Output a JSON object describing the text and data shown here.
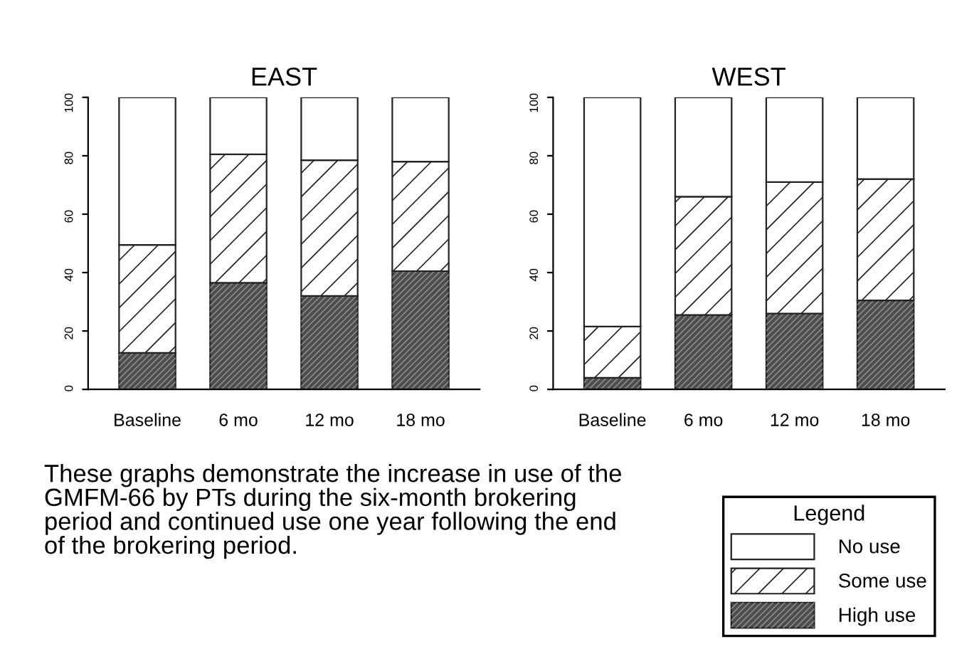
{
  "chart_data": [
    {
      "type": "bar",
      "title": "EAST",
      "stacked": true,
      "categories": [
        "Baseline",
        "6 mo",
        "12 mo",
        "18 mo"
      ],
      "series": [
        {
          "color": "#4d4d4d",
          "values": [
            12.5,
            36.5,
            32,
            40.5
          ]
        },
        {
          "color": "#ffffff",
          "values": [
            37,
            44,
            46.5,
            37.5
          ]
        },
        {
          "color": "#ffffff",
          "values": [
            50.5,
            19.5,
            21.5,
            22
          ]
        }
      ],
      "ylim": [
        0,
        100
      ],
      "yticks": [
        0,
        20,
        40,
        60,
        80,
        100
      ],
      "grid": false,
      "legend": false,
      "annotations": [
        "These graphs demonstrate the increase in use of the GMFM-66 by PTs during the six-month brokering period and continued use one year following the end of the brokering period."
      ]
    },
    {
      "type": "bar",
      "title": "WEST",
      "stacked": true,
      "categories": [
        "Baseline",
        "6 mo",
        "12 mo",
        "18 mo"
      ],
      "series": [
        {
          "name": "High use",
          "color": "#4d4d4d",
          "values": [
            4,
            25.5,
            26,
            30.5
          ]
        },
        {
          "name": "Some use",
          "color": "#ffffff",
          "values": [
            17.5,
            40.5,
            45,
            41.5
          ]
        },
        {
          "name": "No use",
          "color": "#ffffff",
          "values": [
            78.5,
            34,
            29,
            28
          ]
        }
      ],
      "ylim": [
        0,
        100
      ],
      "yticks": [
        0,
        20,
        40,
        60,
        80,
        100
      ],
      "grid": false,
      "legend": "bottom right",
      "legend_title": "Legend"
    }
  ]
}
